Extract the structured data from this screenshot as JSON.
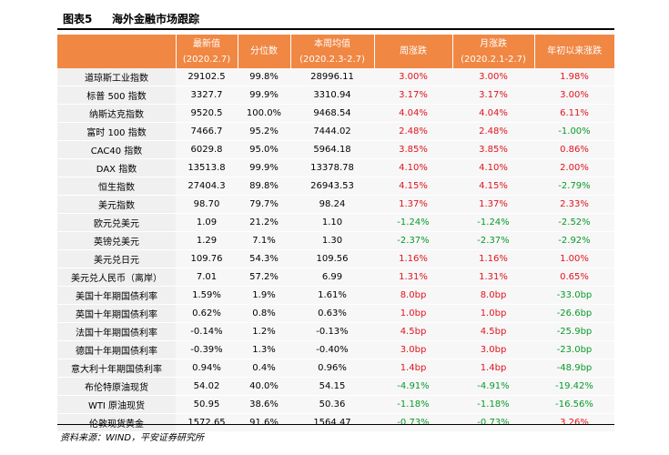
{
  "title": {
    "label": "图表5",
    "name": "海外金融市场跟踪"
  },
  "header": [
    [
      "",
      ""
    ],
    [
      "最新值",
      "(2020.2.7)"
    ],
    [
      "分位数",
      ""
    ],
    [
      "本周均值",
      "(2020.2.3-2.7)"
    ],
    [
      "周涨跌",
      ""
    ],
    [
      "月涨跌",
      "(2020.2.1-2.7)"
    ],
    [
      "年初以来涨跌",
      ""
    ]
  ],
  "colors": {
    "header_bg": "#f08743",
    "up": "#e0141e",
    "down": "#0a9a2a"
  },
  "rows": [
    {
      "name": "道琼斯工业指数",
      "latest": "29102.5",
      "pct": "99.8%",
      "week_avg": "28996.11",
      "week": "3.00%",
      "month": "3.00%",
      "ytd": "1.98%",
      "dir": [
        "up",
        "up",
        "up"
      ],
      "group_start": false
    },
    {
      "name": "标普 500 指数",
      "latest": "3327.7",
      "pct": "99.9%",
      "week_avg": "3310.94",
      "week": "3.17%",
      "month": "3.17%",
      "ytd": "3.00%",
      "dir": [
        "up",
        "up",
        "up"
      ],
      "group_start": false
    },
    {
      "name": "纳斯达克指数",
      "latest": "9520.5",
      "pct": "100.0%",
      "week_avg": "9468.54",
      "week": "4.04%",
      "month": "4.04%",
      "ytd": "6.11%",
      "dir": [
        "up",
        "up",
        "up"
      ],
      "group_start": false
    },
    {
      "name": "富时 100 指数",
      "latest": "7466.7",
      "pct": "95.2%",
      "week_avg": "7444.02",
      "week": "2.48%",
      "month": "2.48%",
      "ytd": "-1.00%",
      "dir": [
        "up",
        "up",
        "down"
      ],
      "group_start": false
    },
    {
      "name": "CAC40 指数",
      "latest": "6029.8",
      "pct": "95.0%",
      "week_avg": "5964.18",
      "week": "3.85%",
      "month": "3.85%",
      "ytd": "0.86%",
      "dir": [
        "up",
        "up",
        "up"
      ],
      "group_start": false
    },
    {
      "name": "DAX 指数",
      "latest": "13513.8",
      "pct": "99.9%",
      "week_avg": "13378.78",
      "week": "4.10%",
      "month": "4.10%",
      "ytd": "2.00%",
      "dir": [
        "up",
        "up",
        "up"
      ],
      "group_start": false
    },
    {
      "name": "恒生指数",
      "latest": "27404.3",
      "pct": "89.8%",
      "week_avg": "26943.53",
      "week": "4.15%",
      "month": "4.15%",
      "ytd": "-2.79%",
      "dir": [
        "up",
        "up",
        "down"
      ],
      "group_start": false
    },
    {
      "name": "美元指数",
      "latest": "98.70",
      "pct": "79.7%",
      "week_avg": "98.24",
      "week": "1.37%",
      "month": "1.37%",
      "ytd": "2.33%",
      "dir": [
        "up",
        "up",
        "up"
      ],
      "group_start": true
    },
    {
      "name": "欧元兑美元",
      "latest": "1.09",
      "pct": "21.2%",
      "week_avg": "1.10",
      "week": "-1.24%",
      "month": "-1.24%",
      "ytd": "-2.52%",
      "dir": [
        "down",
        "down",
        "down"
      ],
      "group_start": false
    },
    {
      "name": "英镑兑美元",
      "latest": "1.29",
      "pct": "7.1%",
      "week_avg": "1.30",
      "week": "-2.37%",
      "month": "-2.37%",
      "ytd": "-2.92%",
      "dir": [
        "down",
        "down",
        "down"
      ],
      "group_start": false
    },
    {
      "name": "美元兑日元",
      "latest": "109.76",
      "pct": "54.3%",
      "week_avg": "109.56",
      "week": "1.16%",
      "month": "1.16%",
      "ytd": "1.00%",
      "dir": [
        "up",
        "up",
        "up"
      ],
      "group_start": false
    },
    {
      "name": "美元兑人民币（离岸）",
      "latest": "7.01",
      "pct": "57.2%",
      "week_avg": "6.99",
      "week": "1.31%",
      "month": "1.31%",
      "ytd": "0.65%",
      "dir": [
        "up",
        "up",
        "up"
      ],
      "group_start": false
    },
    {
      "name": "美国十年期国债利率",
      "latest": "1.59%",
      "pct": "1.9%",
      "week_avg": "1.61%",
      "week": "8.0bp",
      "month": "8.0bp",
      "ytd": "-33.0bp",
      "dir": [
        "up",
        "up",
        "down"
      ],
      "group_start": true
    },
    {
      "name": "英国十年期国债利率",
      "latest": "0.62%",
      "pct": "0.8%",
      "week_avg": "0.63%",
      "week": "1.0bp",
      "month": "1.0bp",
      "ytd": "-26.6bp",
      "dir": [
        "up",
        "up",
        "down"
      ],
      "group_start": false
    },
    {
      "name": "法国十年期国债利率",
      "latest": "-0.14%",
      "pct": "1.2%",
      "week_avg": "-0.13%",
      "week": "4.5bp",
      "month": "4.5bp",
      "ytd": "-25.9bp",
      "dir": [
        "up",
        "up",
        "down"
      ],
      "group_start": false
    },
    {
      "name": "德国十年期国债利率",
      "latest": "-0.39%",
      "pct": "1.3%",
      "week_avg": "-0.40%",
      "week": "3.0bp",
      "month": "3.0bp",
      "ytd": "-23.0bp",
      "dir": [
        "up",
        "up",
        "down"
      ],
      "group_start": false
    },
    {
      "name": "意大利十年期国债利率",
      "latest": "0.94%",
      "pct": "0.4%",
      "week_avg": "0.96%",
      "week": "1.4bp",
      "month": "1.4bp",
      "ytd": "-48.9bp",
      "dir": [
        "up",
        "up",
        "down"
      ],
      "group_start": false
    },
    {
      "name": "布伦特原油现货",
      "latest": "54.02",
      "pct": "40.0%",
      "week_avg": "54.15",
      "week": "-4.91%",
      "month": "-4.91%",
      "ytd": "-19.42%",
      "dir": [
        "down",
        "down",
        "down"
      ],
      "group_start": true
    },
    {
      "name": "WTI 原油现货",
      "latest": "50.95",
      "pct": "38.6%",
      "week_avg": "50.36",
      "week": "-1.18%",
      "month": "-1.18%",
      "ytd": "-16.56%",
      "dir": [
        "down",
        "down",
        "down"
      ],
      "group_start": false
    },
    {
      "name": "伦敦现货黄金",
      "latest": "1572.65",
      "pct": "91.6%",
      "week_avg": "1564.47",
      "week": "-0.73%",
      "month": "-0.73%",
      "ytd": "3.26%",
      "dir": [
        "down",
        "down",
        "up"
      ],
      "group_start": false
    }
  ],
  "source": "资料来源：WIND，平安证券研究所"
}
